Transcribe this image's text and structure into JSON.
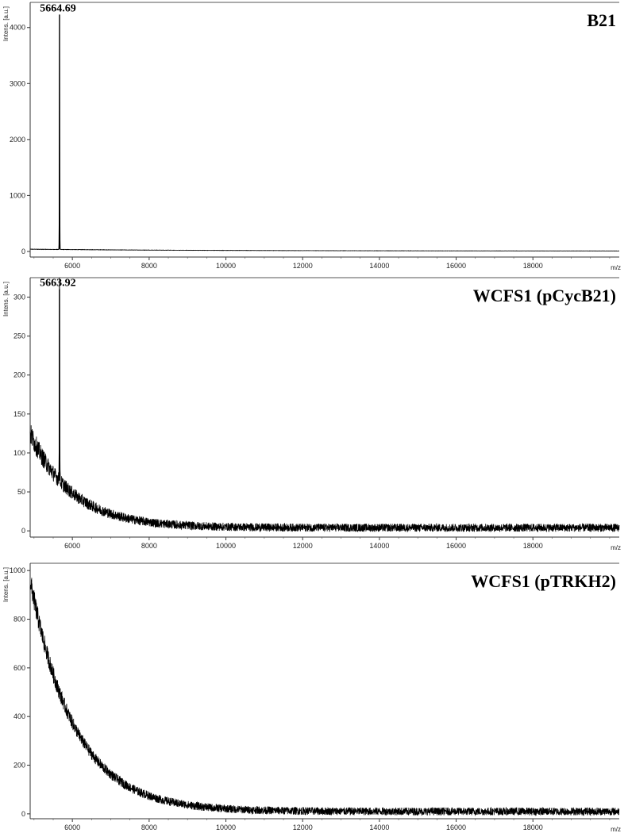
{
  "chart_data": [
    {
      "type": "line",
      "title": "B21",
      "xlabel": "m/z",
      "ylabel": "Intens. [a.u.]",
      "xlim": [
        4900,
        20250
      ],
      "ylim": [
        -100,
        4450
      ],
      "x_ticks": [
        6000,
        8000,
        10000,
        12000,
        14000,
        16000,
        18000
      ],
      "y_ticks": [
        0,
        1000,
        2000,
        3000,
        4000
      ],
      "baseline": {
        "start": 40,
        "end": 8,
        "decay": 4500
      },
      "noise": 3,
      "peaks": [
        {
          "x": 5664.69,
          "y": 4230,
          "label": "5664.69"
        }
      ],
      "grid": false,
      "legend": "none",
      "color": "#000000"
    },
    {
      "type": "line",
      "title": "WCFS1 (pCycB21)",
      "xlabel": "m/z",
      "ylabel": "Intens. [a.u.]",
      "xlim": [
        4900,
        20250
      ],
      "ylim": [
        -8,
        325
      ],
      "x_ticks": [
        6000,
        8000,
        10000,
        12000,
        14000,
        16000,
        18000
      ],
      "y_ticks": [
        0,
        50,
        100,
        150,
        200,
        250,
        300
      ],
      "baseline": {
        "start": 125,
        "end": 4,
        "decay": 1100
      },
      "noise": 14,
      "peaks": [
        {
          "x": 5663.92,
          "y": 310,
          "label": "5663.92"
        }
      ],
      "grid": false,
      "legend": "none",
      "color": "#000000"
    },
    {
      "type": "line",
      "title": "WCFS1 (pTRKH2)",
      "xlabel": "m/z",
      "ylabel": "Intens. [a.u.]",
      "xlim": [
        4900,
        20250
      ],
      "ylim": [
        -20,
        1030
      ],
      "x_ticks": [
        6000,
        8000,
        10000,
        12000,
        14000,
        16000,
        18000
      ],
      "y_ticks": [
        0,
        200,
        400,
        600,
        800,
        1000
      ],
      "baseline": {
        "start": 960,
        "end": 10,
        "decay": 1150
      },
      "noise": 45,
      "peaks": [],
      "grid": false,
      "legend": "none",
      "color": "#000000"
    }
  ]
}
